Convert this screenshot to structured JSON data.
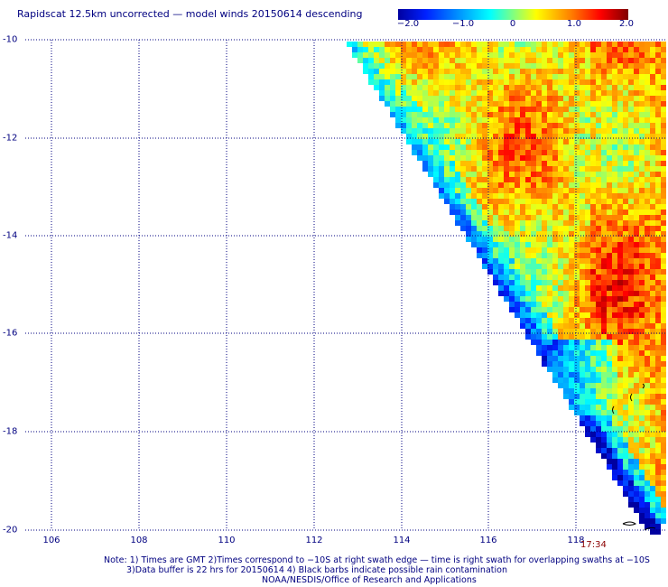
{
  "title": "Rapidscat 12.5km uncorrected — model winds 20150614 descending",
  "colorbar": {
    "labels": [
      "−2.0",
      "−1.0",
      "0",
      "1.0",
      "2.0"
    ],
    "range": [
      -2.0,
      2.0
    ]
  },
  "axes": {
    "lat_ticks": [
      "-10",
      "-12",
      "-14",
      "-16",
      "-18",
      "-20"
    ],
    "lon_ticks": [
      "106",
      "108",
      "110",
      "112",
      "114",
      "116",
      "118"
    ]
  },
  "swath_time": "17:34",
  "notes": {
    "line1": "Note: 1) Times are GMT 2)Times correspond to −10S at right swath edge — time is right swath for overlapping swaths at −10S",
    "line2": "3)Data buffer is 22 hrs for 20150614 4) Black barbs indicate possible rain contamination",
    "line3": "NOAA/NESDIS/Office of Research and Applications"
  },
  "colors": {
    "text": "#000080",
    "grid": "#000080",
    "time": "#8b0000"
  }
}
